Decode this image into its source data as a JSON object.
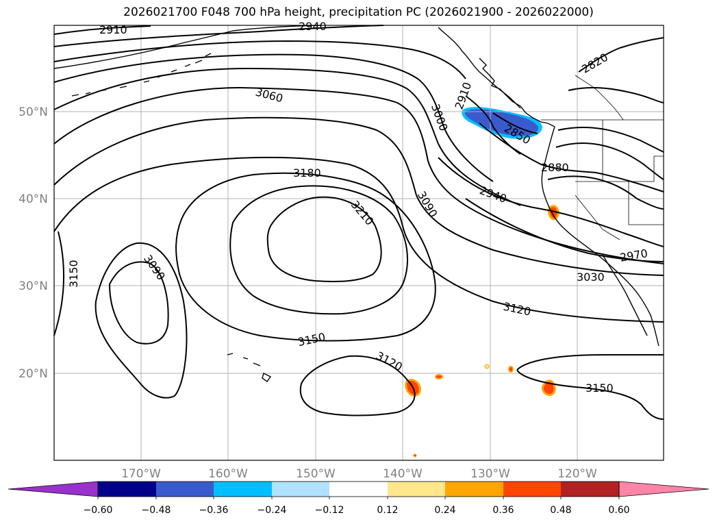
{
  "title": "2026021700 F048 700 hPa height, precipitation PC (2026021900 - 2026022000)",
  "axes": {
    "lon_ticks": [
      "170°W",
      "160°W",
      "150°W",
      "140°W",
      "130°W",
      "120°W"
    ],
    "lat_ticks": [
      "50°N",
      "40°N",
      "30°N",
      "20°N"
    ]
  },
  "contour_labels": [
    "2910",
    "2940",
    "2820",
    "3060",
    "3000",
    "2910",
    "2850",
    "2880",
    "2940",
    "3090",
    "3180",
    "3210",
    "3090",
    "3150",
    "2970",
    "3030",
    "3120",
    "3150",
    "3120",
    "3150"
  ],
  "colorbar": {
    "ticks": [
      "−0.60",
      "−0.48",
      "−0.36",
      "−0.24",
      "−0.12",
      "0.12",
      "0.24",
      "0.36",
      "0.48",
      "0.60"
    ],
    "colors": [
      "#9932cc",
      "#00008b",
      "#3a5bcd",
      "#00bfff",
      "#b0e2ff",
      "#ffffff",
      "#ffe78a",
      "#ffa500",
      "#ff4500",
      "#b22222",
      "#ff85a8"
    ]
  }
}
